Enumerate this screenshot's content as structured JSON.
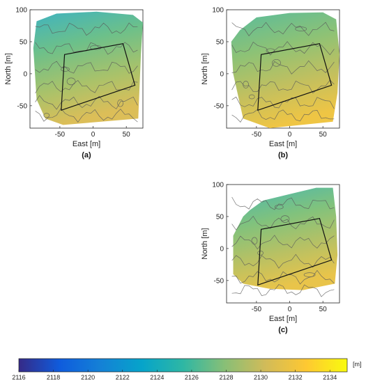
{
  "chart_data": {
    "type": "heatmap",
    "panels": [
      {
        "label": "(a)",
        "xlabel": "East [m]",
        "ylabel": "North [m]",
        "xticks": [
          -50,
          0,
          50
        ],
        "yticks": [
          -50,
          0,
          50,
          100
        ],
        "xlim": [
          -95,
          75
        ],
        "ylim": [
          -85,
          100
        ],
        "quadrilateral": [
          [
            -43,
            30
          ],
          [
            45,
            47
          ],
          [
            63,
            -18
          ],
          [
            -48,
            -57
          ]
        ],
        "footprint": [
          [
            -85,
            82
          ],
          [
            -55,
            94
          ],
          [
            5,
            97
          ],
          [
            60,
            92
          ],
          [
            75,
            80
          ],
          [
            72,
            30
          ],
          [
            70,
            -20
          ],
          [
            68,
            -70
          ],
          [
            -45,
            -80
          ],
          [
            -72,
            -70
          ],
          [
            -85,
            -40
          ],
          [
            -90,
            40
          ]
        ]
      },
      {
        "label": "(b)",
        "xlabel": "East [m]",
        "ylabel": "North [m]",
        "xticks": [
          -50,
          0,
          50
        ],
        "yticks": [
          -50,
          0,
          50,
          100
        ],
        "xlim": [
          -95,
          75
        ],
        "ylim": [
          -85,
          100
        ],
        "quadrilateral": [
          [
            -43,
            30
          ],
          [
            45,
            47
          ],
          [
            63,
            -18
          ],
          [
            -48,
            -57
          ]
        ],
        "footprint": [
          [
            -75,
            68
          ],
          [
            -50,
            88
          ],
          [
            0,
            95
          ],
          [
            50,
            96
          ],
          [
            70,
            85
          ],
          [
            75,
            30
          ],
          [
            72,
            -30
          ],
          [
            65,
            -75
          ],
          [
            -30,
            -85
          ],
          [
            -70,
            -70
          ],
          [
            -85,
            0
          ],
          [
            -88,
            50
          ]
        ]
      },
      {
        "label": "(c)",
        "xlabel": "East [m]",
        "ylabel": "North [m]",
        "xticks": [
          -50,
          0,
          50
        ],
        "yticks": [
          -50,
          0,
          50,
          100
        ],
        "xlim": [
          -95,
          75
        ],
        "ylim": [
          -85,
          100
        ],
        "quadrilateral": [
          [
            -43,
            30
          ],
          [
            45,
            47
          ],
          [
            63,
            -18
          ],
          [
            -48,
            -57
          ]
        ],
        "footprint": [
          [
            -60,
            60
          ],
          [
            -40,
            75
          ],
          [
            0,
            85
          ],
          [
            40,
            95
          ],
          [
            65,
            95
          ],
          [
            70,
            50
          ],
          [
            72,
            -10
          ],
          [
            68,
            -55
          ],
          [
            20,
            -65
          ],
          [
            -30,
            -63
          ],
          [
            -70,
            -55
          ],
          [
            -85,
            -40
          ],
          [
            -85,
            20
          ],
          [
            -70,
            50
          ]
        ]
      }
    ],
    "colorbar": {
      "unit": "[m]",
      "min": 2116,
      "max": 2135,
      "ticks": [
        2116,
        2118,
        2120,
        2122,
        2124,
        2126,
        2128,
        2130,
        2132,
        2134
      ],
      "colormap": "parula"
    }
  },
  "colors": {
    "quad_outline": "#111111",
    "contour": "#5a5a5a",
    "parula_stops": [
      "#352a87",
      "#0f5cdd",
      "#1481d6",
      "#06a4ca",
      "#2eb7a4",
      "#87bf77",
      "#d1bb59",
      "#fec832",
      "#f9fb0e"
    ]
  }
}
